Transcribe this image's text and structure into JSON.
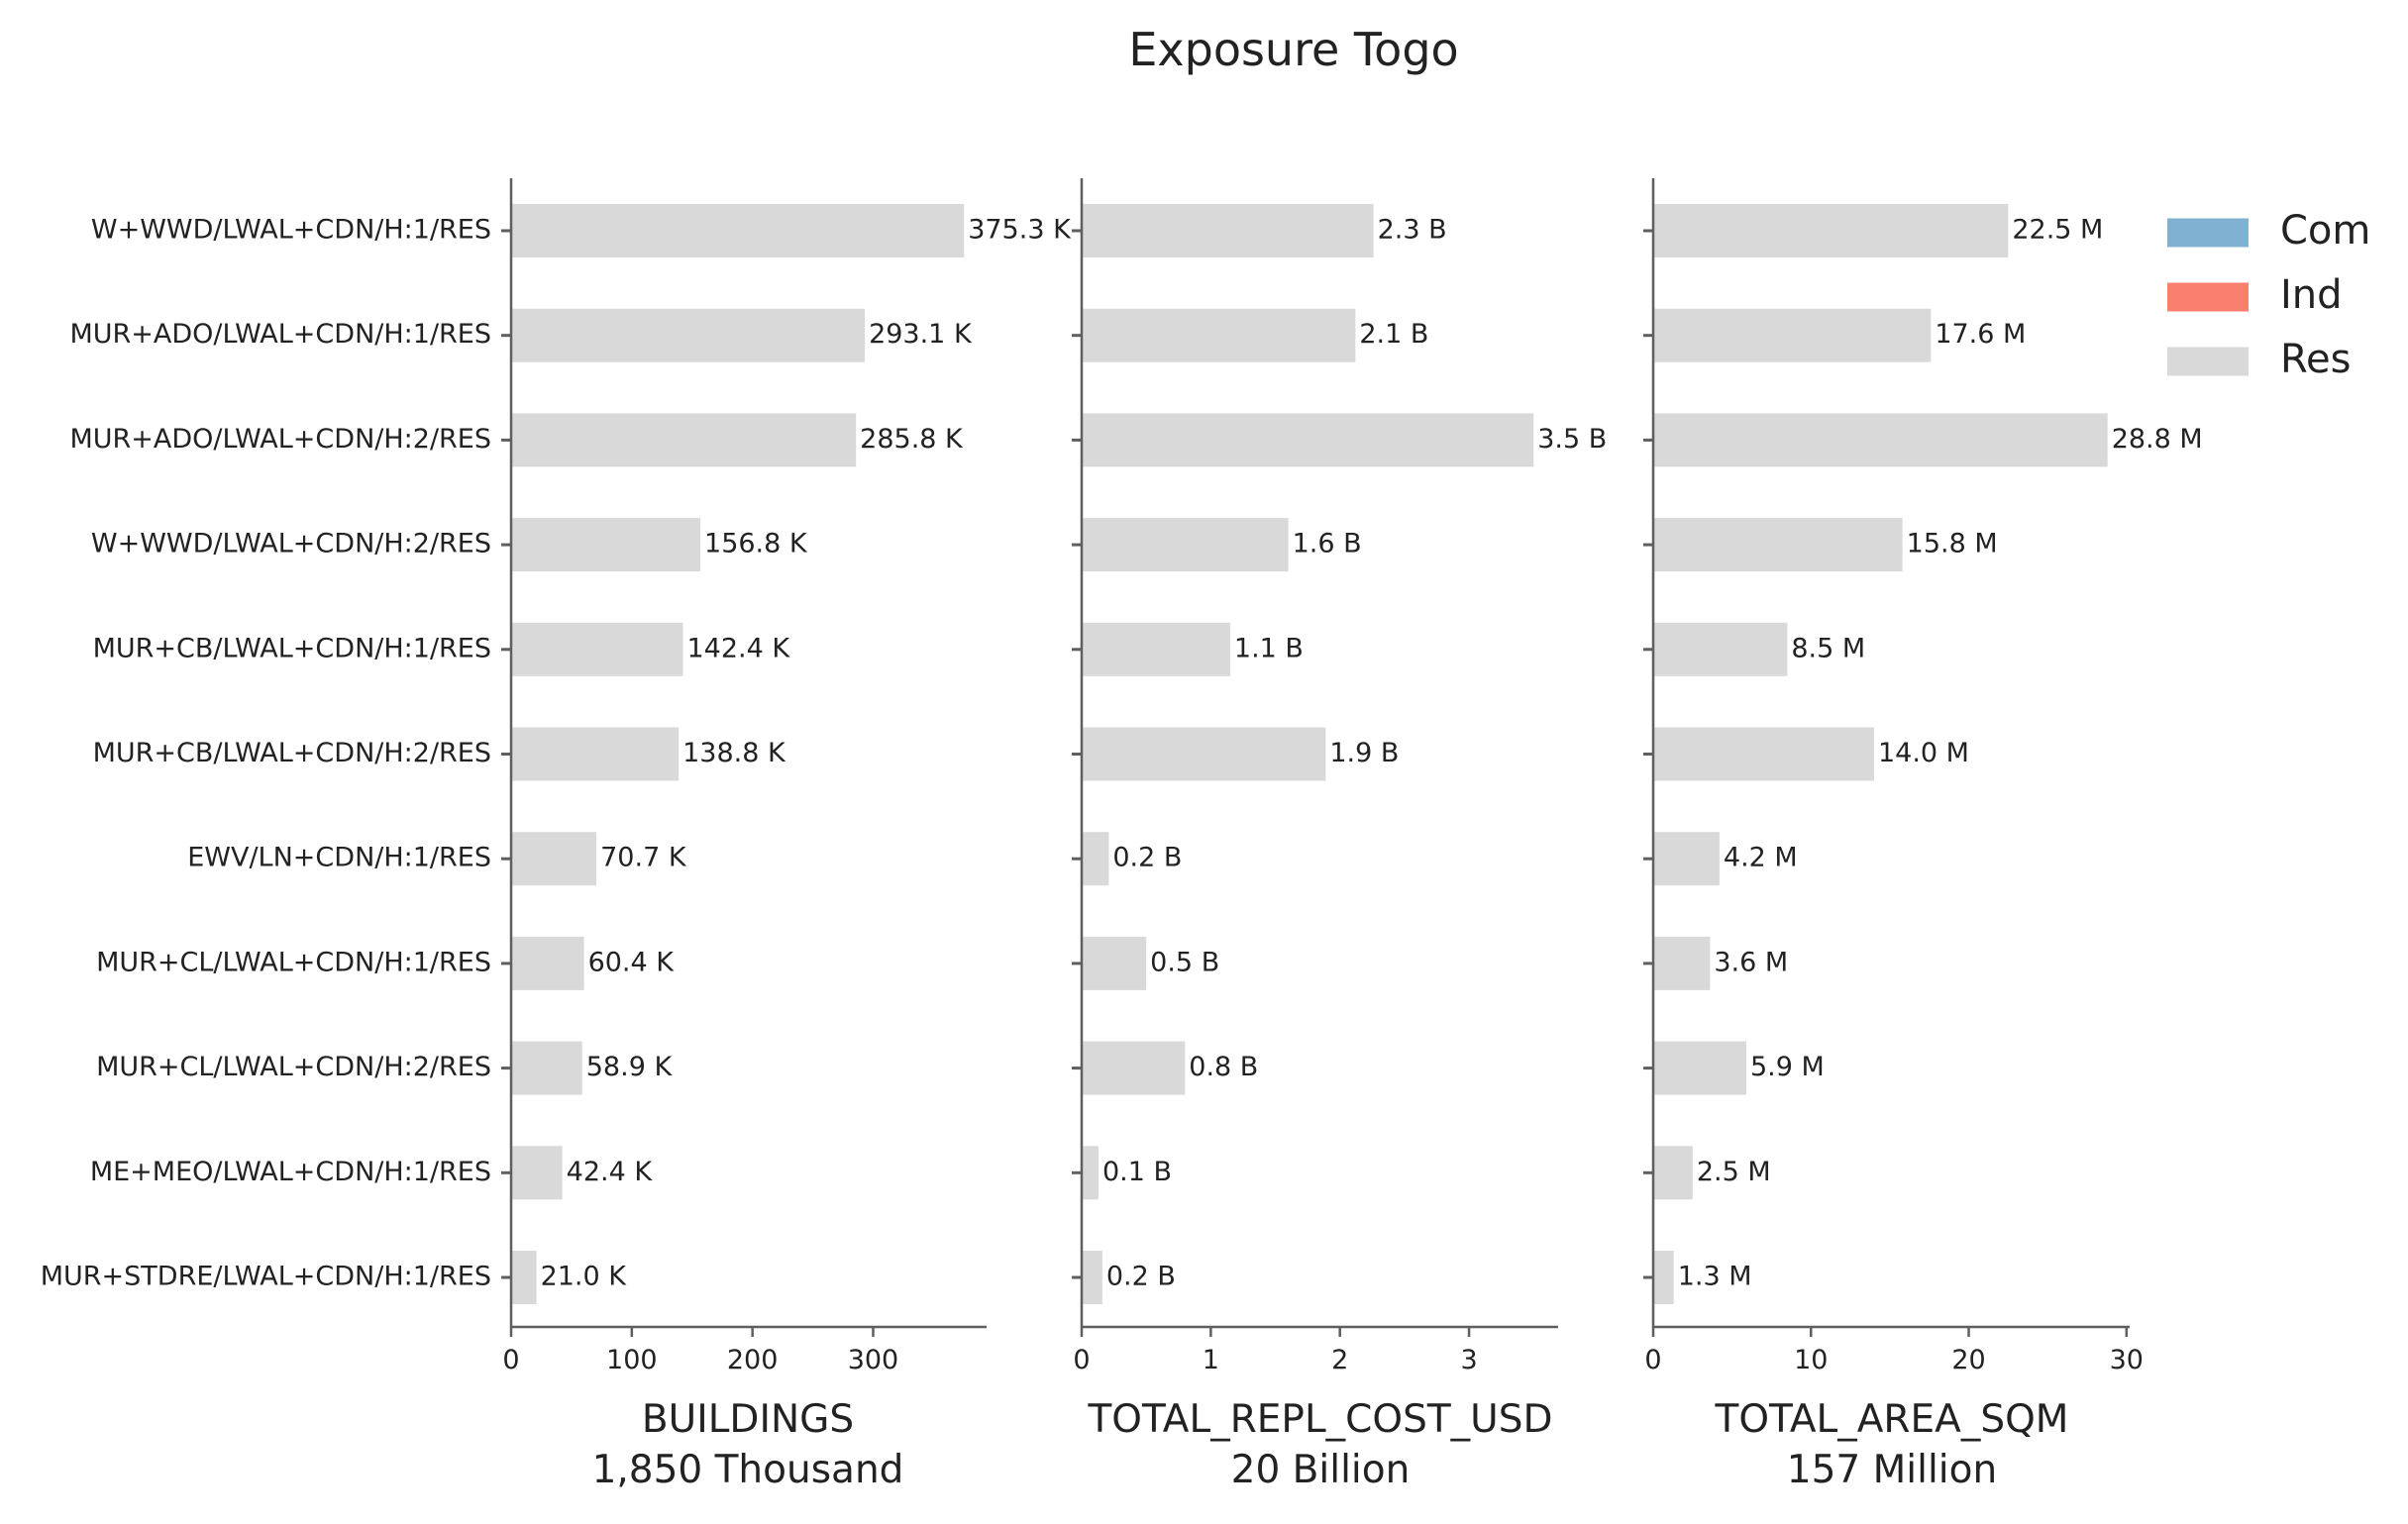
{
  "chart_data": {
    "type": "bar",
    "orientation": "horizontal",
    "title": "Exposure Togo",
    "categories": [
      "W+WWD/LWAL+CDN/H:1/RES",
      "MUR+ADO/LWAL+CDN/H:1/RES",
      "MUR+ADO/LWAL+CDN/H:2/RES",
      "W+WWD/LWAL+CDN/H:2/RES",
      "MUR+CB/LWAL+CDN/H:1/RES",
      "MUR+CB/LWAL+CDN/H:2/RES",
      "EWV/LN+CDN/H:1/RES",
      "MUR+CL/LWAL+CDN/H:1/RES",
      "MUR+CL/LWAL+CDN/H:2/RES",
      "ME+MEO/LWAL+CDN/H:1/RES",
      "MUR+STDRE/LWAL+CDN/H:1/RES"
    ],
    "panels": [
      {
        "xlabel": "BUILDINGS",
        "total": "1,850 Thousand",
        "values": [
          375.3,
          293.1,
          285.8,
          156.8,
          142.4,
          138.8,
          70.7,
          60.4,
          58.9,
          42.4,
          21.0
        ],
        "labels": [
          "375.3 K",
          "293.1 K",
          "285.8 K",
          "156.8 K",
          "142.4 K",
          "138.8 K",
          "70.7 K",
          "60.4 K",
          "58.9 K",
          "42.4 K",
          "21.0 K"
        ],
        "xlim": [
          0,
          394
        ],
        "xticks": [
          0,
          100,
          200,
          300
        ]
      },
      {
        "xlabel": "TOTAL_REPL_COST_USD",
        "total": "20 Billion",
        "values": [
          2.26,
          2.12,
          3.5,
          1.6,
          1.15,
          1.89,
          0.21,
          0.5,
          0.8,
          0.13,
          0.16
        ],
        "labels": [
          "2.3 B",
          "2.1 B",
          "3.5 B",
          "1.6 B",
          "1.1 B",
          "1.9 B",
          "0.2 B",
          "0.5 B",
          "0.8 B",
          "0.1 B",
          "0.2 B"
        ],
        "xlim": [
          0,
          3.69
        ],
        "xticks": [
          0,
          1,
          2,
          3
        ]
      },
      {
        "xlabel": "TOTAL_AREA_SQM",
        "total": "157 Million",
        "values": [
          22.5,
          17.6,
          28.8,
          15.8,
          8.5,
          14.0,
          4.2,
          3.6,
          5.9,
          2.5,
          1.3
        ],
        "labels": [
          "22.5 M",
          "17.6 M",
          "28.8 M",
          "15.8 M",
          "8.5 M",
          "14.0 M",
          "4.2 M",
          "3.6 M",
          "5.9 M",
          "2.5 M",
          "1.3 M"
        ],
        "xlim": [
          0,
          30.2
        ],
        "xticks": [
          0,
          10,
          20,
          30
        ]
      }
    ],
    "legend": {
      "position": "top-right",
      "entries": [
        {
          "name": "Com",
          "color": "#7fb1d2"
        },
        {
          "name": "Ind",
          "color": "#f9806f"
        },
        {
          "name": "Res",
          "color": "#d9d9d9"
        }
      ]
    },
    "bar_color": "#d9d9d9",
    "axis_color": "#5f5f5f",
    "grid": false
  }
}
